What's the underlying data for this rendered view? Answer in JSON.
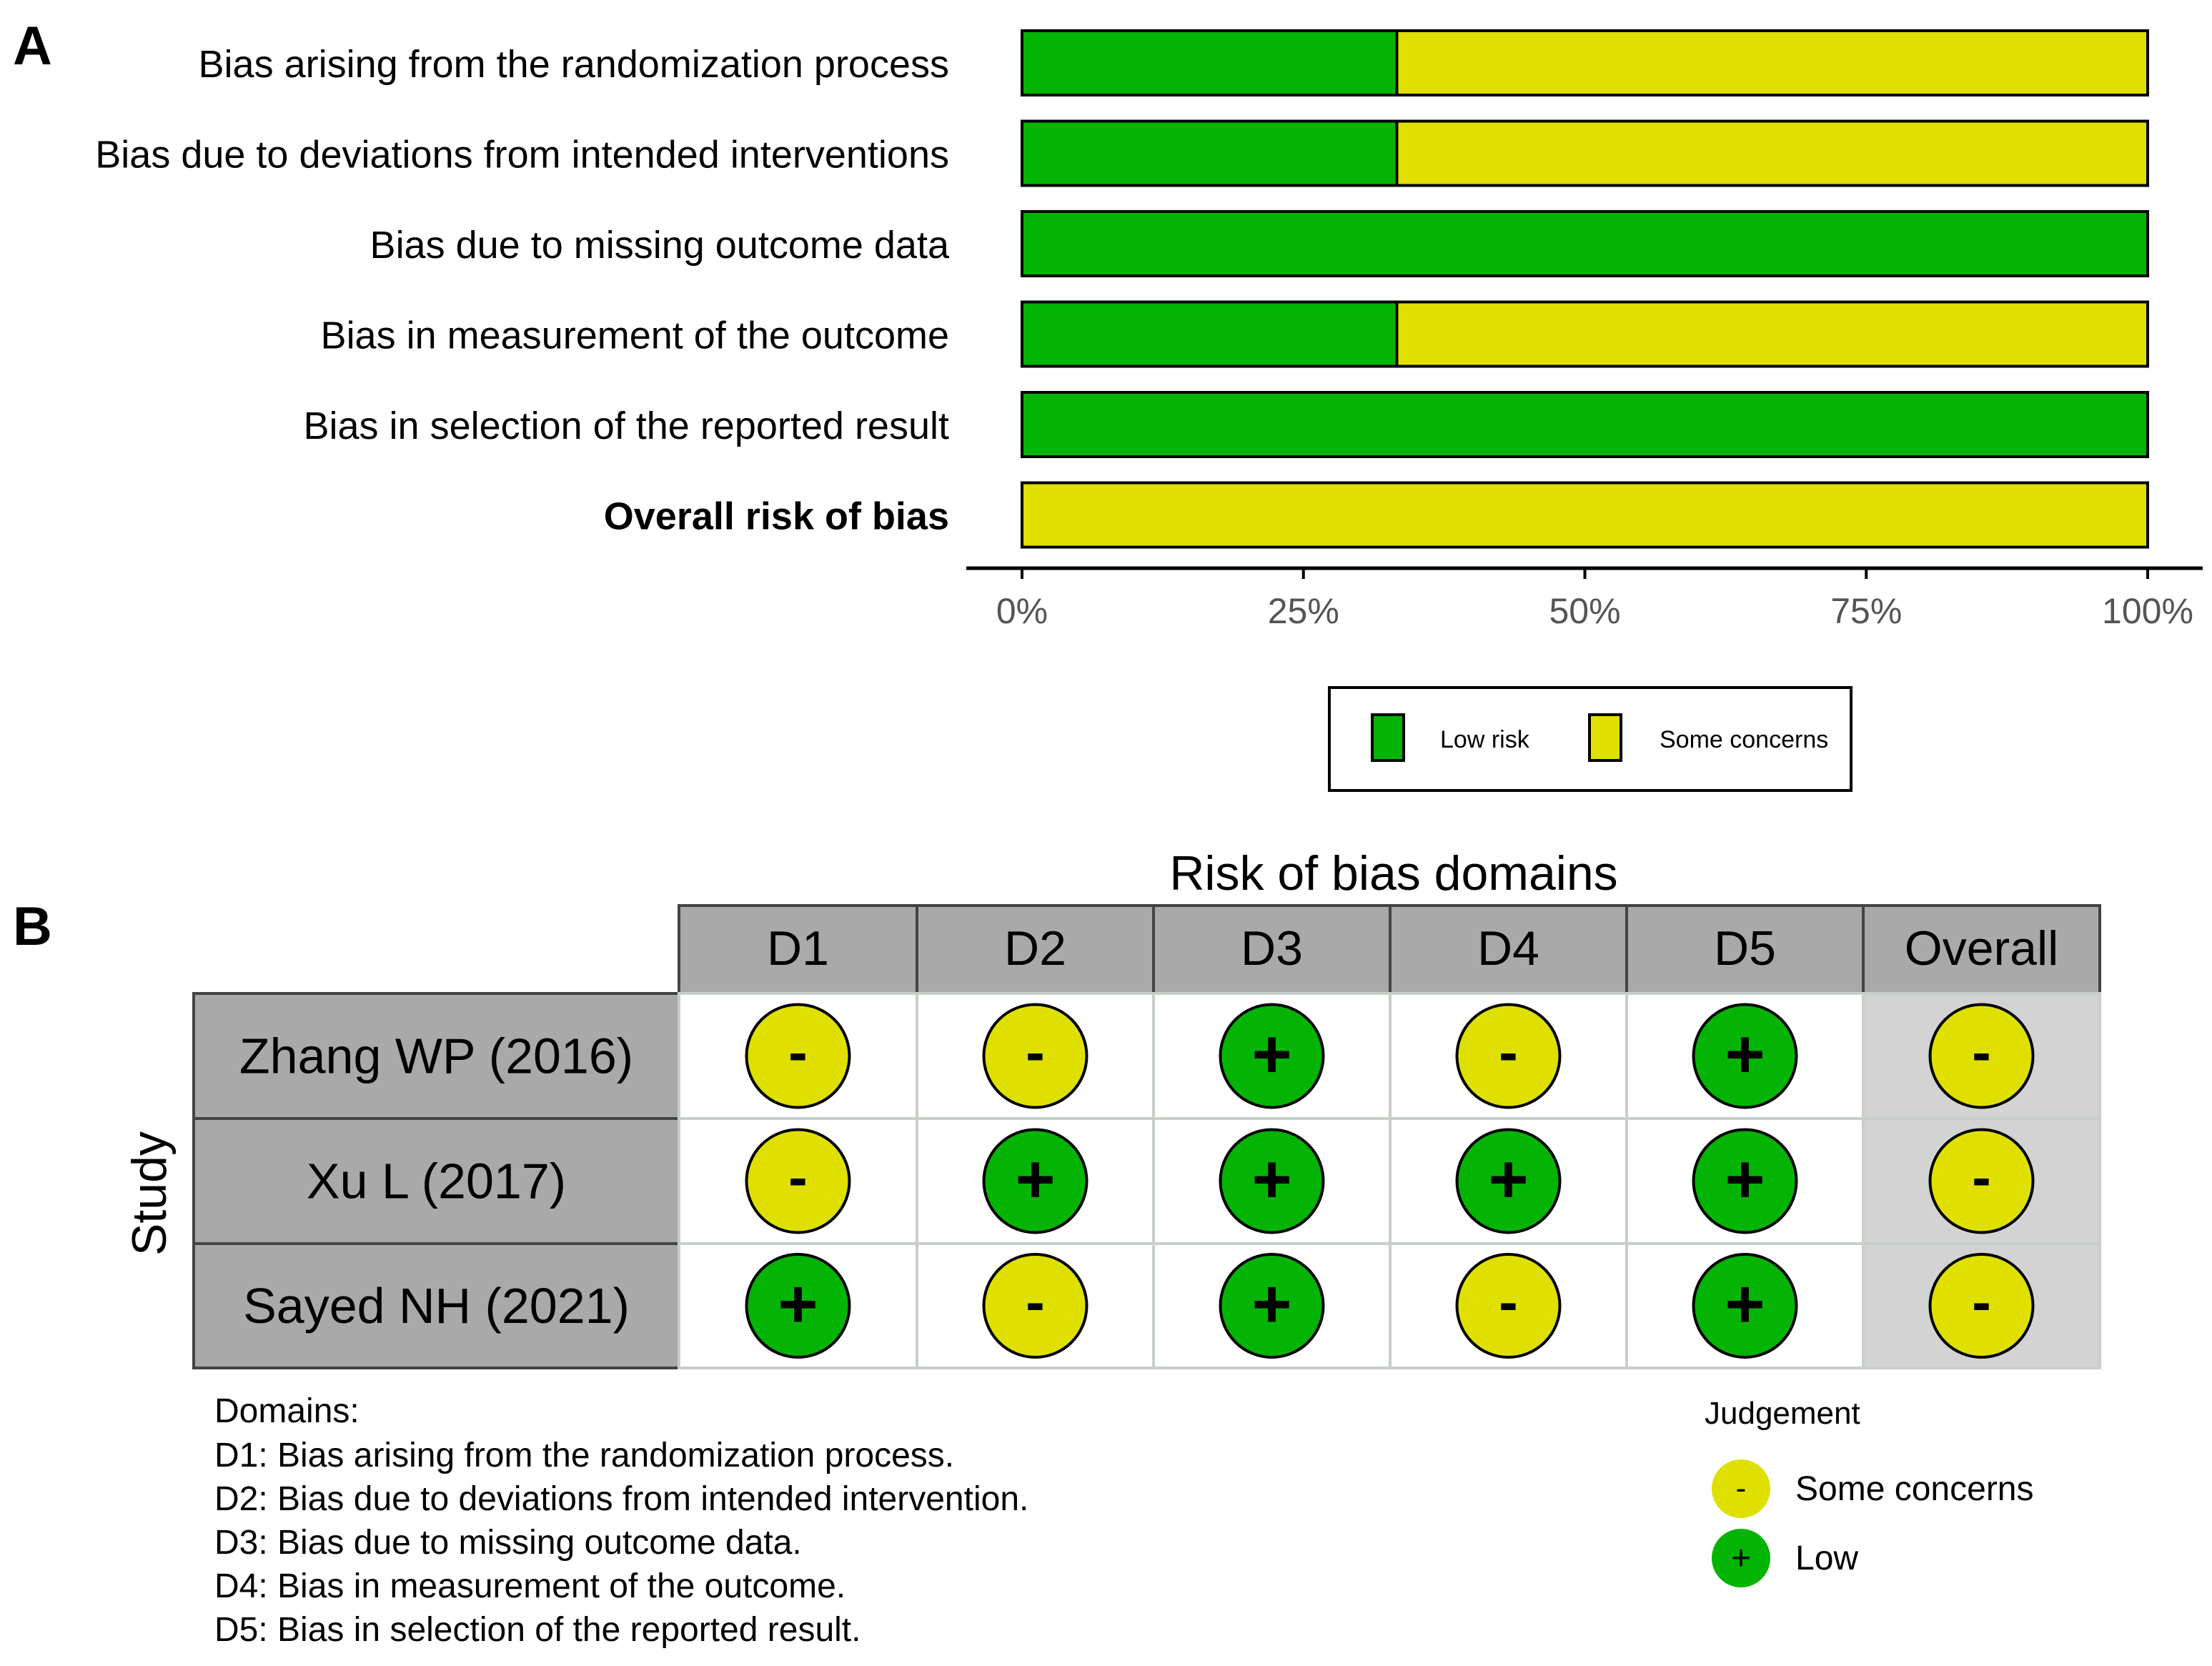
{
  "panel_a": {
    "label": "A",
    "legend": {
      "low": "Low risk",
      "some": "Some concerns"
    }
  },
  "panel_b": {
    "label": "B",
    "domains_heading": "Domains:",
    "domain_notes": [
      "D1: Bias arising from the randomization process.",
      "D2: Bias due to deviations from intended intervention.",
      "D3: Bias due to missing outcome data.",
      "D4: Bias in measurement of the outcome.",
      "D5: Bias in selection of the reported result."
    ],
    "judgement_title": "Judgement",
    "judgement_items": [
      {
        "symbol": "-",
        "label": "Some concerns",
        "level": "some"
      },
      {
        "symbol": "+",
        "label": "Low",
        "level": "low"
      }
    ]
  },
  "colors": {
    "low": "#04b404",
    "some": "#e0e000",
    "header_gray": "#a9a9a9",
    "overall_bg": "#d3d3d3",
    "study_bg": "#a9a9a9"
  },
  "chart_data": [
    {
      "type": "bar",
      "orientation": "horizontal",
      "stacked": true,
      "categories": [
        "Bias arising from the randomization process",
        "Bias due to deviations from intended interventions",
        "Bias due to missing outcome data",
        "Bias in measurement of the outcome",
        "Bias in selection of the reported result",
        "Overall risk of bias"
      ],
      "series": [
        {
          "name": "Low risk",
          "values": [
            33.3,
            33.3,
            100,
            33.3,
            100,
            0
          ]
        },
        {
          "name": "Some concerns",
          "values": [
            66.7,
            66.7,
            0,
            66.7,
            0,
            100
          ]
        }
      ],
      "xlim": [
        0,
        100
      ],
      "xticks": [
        "0%",
        "25%",
        "50%",
        "75%",
        "100%"
      ],
      "legend_placement": "bottom"
    },
    {
      "type": "table",
      "title": "Risk of bias domains",
      "ylabel": "Study",
      "columns": [
        "D1",
        "D2",
        "D3",
        "D4",
        "D5",
        "Overall"
      ],
      "rows": [
        {
          "study": "Zhang WP (2016)",
          "judgements": [
            "-",
            "-",
            "+",
            "-",
            "+",
            "-"
          ]
        },
        {
          "study": "Xu L (2017)",
          "judgements": [
            "-",
            "+",
            "+",
            "+",
            "+",
            "-"
          ]
        },
        {
          "study": "Sayed NH (2021)",
          "judgements": [
            "+",
            "-",
            "+",
            "-",
            "+",
            "-"
          ]
        }
      ]
    }
  ]
}
